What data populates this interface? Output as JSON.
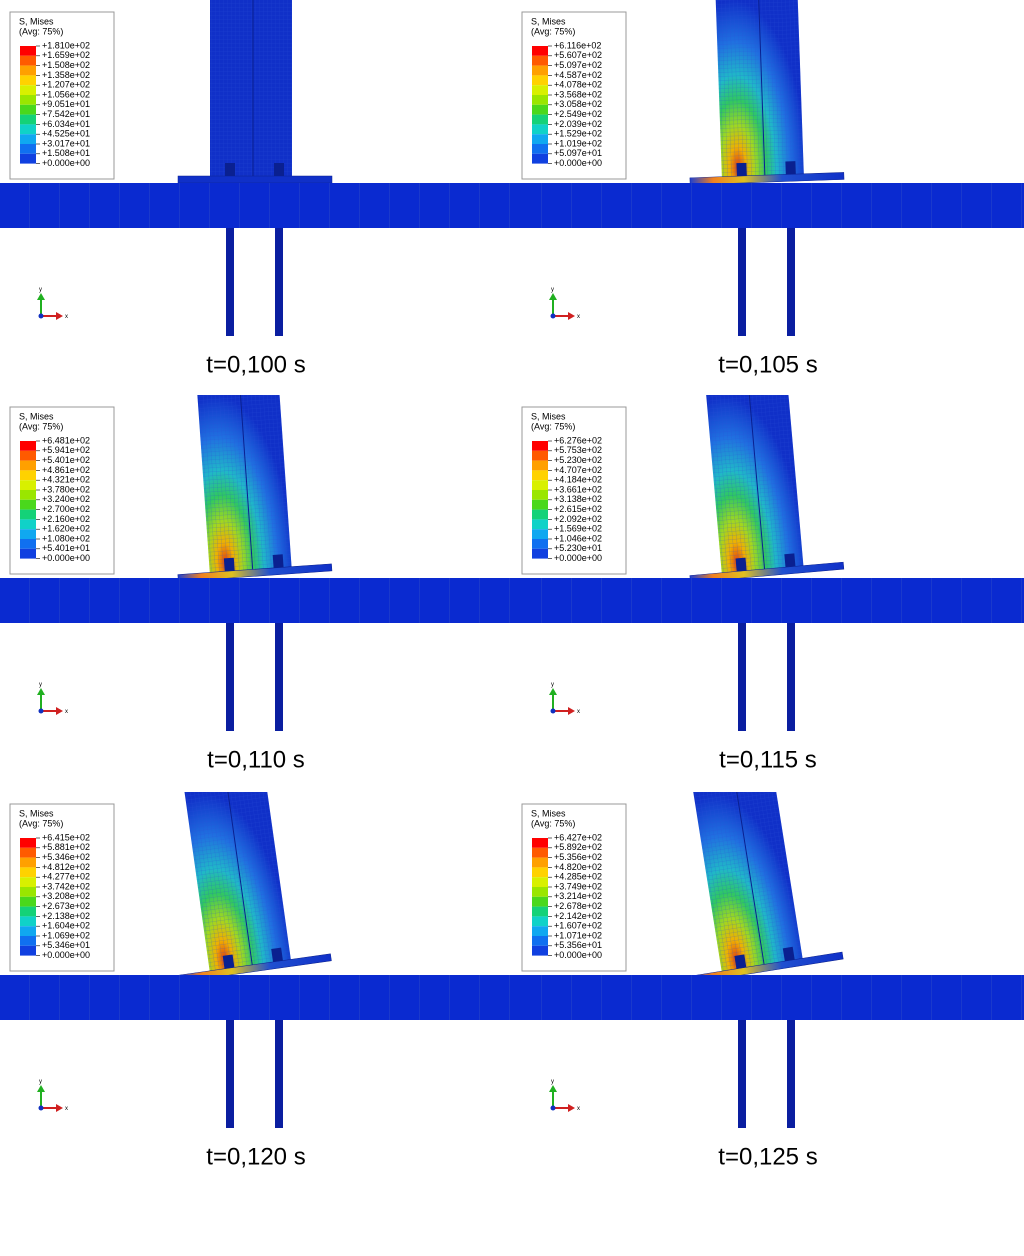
{
  "panels": [
    {
      "legend_title": "S, Mises",
      "legend_subtitle": "(Avg: 75%)",
      "axis_y": "y",
      "axis_x": "x",
      "time": "t=0,100 s",
      "legend_labels": [
        "+1.810e+02",
        "+1.659e+02",
        "+1.508e+02",
        "+1.358e+02",
        "+1.207e+02",
        "+1.056e+02",
        "+9.051e+01",
        "+7.542e+01",
        "+6.034e+01",
        "+4.525e+01",
        "+3.017e+01",
        "+1.508e+01",
        "+0.000e+00"
      ]
    },
    {
      "legend_title": "S, Mises",
      "legend_subtitle": "(Avg: 75%)",
      "axis_y": "y",
      "axis_x": "x",
      "time": "t=0,105 s",
      "legend_labels": [
        "+6.116e+02",
        "+5.607e+02",
        "+5.097e+02",
        "+4.587e+02",
        "+4.078e+02",
        "+3.568e+02",
        "+3.058e+02",
        "+2.549e+02",
        "+2.039e+02",
        "+1.529e+02",
        "+1.019e+02",
        "+5.097e+01",
        "+0.000e+00"
      ]
    },
    {
      "legend_title": "S, Mises",
      "legend_subtitle": "(Avg: 75%)",
      "axis_y": "y",
      "axis_x": "x",
      "time": "t=0,110 s",
      "legend_labels": [
        "+6.481e+02",
        "+5.941e+02",
        "+5.401e+02",
        "+4.861e+02",
        "+4.321e+02",
        "+3.780e+02",
        "+3.240e+02",
        "+2.700e+02",
        "+2.160e+02",
        "+1.620e+02",
        "+1.080e+02",
        "+5.401e+01",
        "+0.000e+00"
      ]
    },
    {
      "legend_title": "S, Mises",
      "legend_subtitle": "(Avg: 75%)",
      "axis_y": "y",
      "axis_x": "x",
      "time": "t=0,115 s",
      "legend_labels": [
        "+6.276e+02",
        "+5.753e+02",
        "+5.230e+02",
        "+4.707e+02",
        "+4.184e+02",
        "+3.661e+02",
        "+3.138e+02",
        "+2.615e+02",
        "+2.092e+02",
        "+1.569e+02",
        "+1.046e+02",
        "+5.230e+01",
        "+0.000e+00"
      ]
    },
    {
      "legend_title": "S, Mises",
      "legend_subtitle": "(Avg: 75%)",
      "axis_y": "y",
      "axis_x": "x",
      "time": "t=0,120 s",
      "legend_labels": [
        "+6.415e+02",
        "+5.881e+02",
        "+5.346e+02",
        "+4.812e+02",
        "+4.277e+02",
        "+3.742e+02",
        "+3.208e+02",
        "+2.673e+02",
        "+2.138e+02",
        "+1.604e+02",
        "+1.069e+02",
        "+5.346e+01",
        "+0.000e+00"
      ]
    },
    {
      "legend_title": "S, Mises",
      "legend_subtitle": "(Avg: 75%)",
      "axis_y": "y",
      "axis_x": "x",
      "time": "t=0,125 s",
      "legend_labels": [
        "+6.427e+02",
        "+5.892e+02",
        "+5.356e+02",
        "+4.820e+02",
        "+4.285e+02",
        "+3.749e+02",
        "+3.214e+02",
        "+2.678e+02",
        "+2.142e+02",
        "+1.607e+02",
        "+1.071e+02",
        "+5.356e+01",
        "+0.000e+00"
      ]
    }
  ]
}
